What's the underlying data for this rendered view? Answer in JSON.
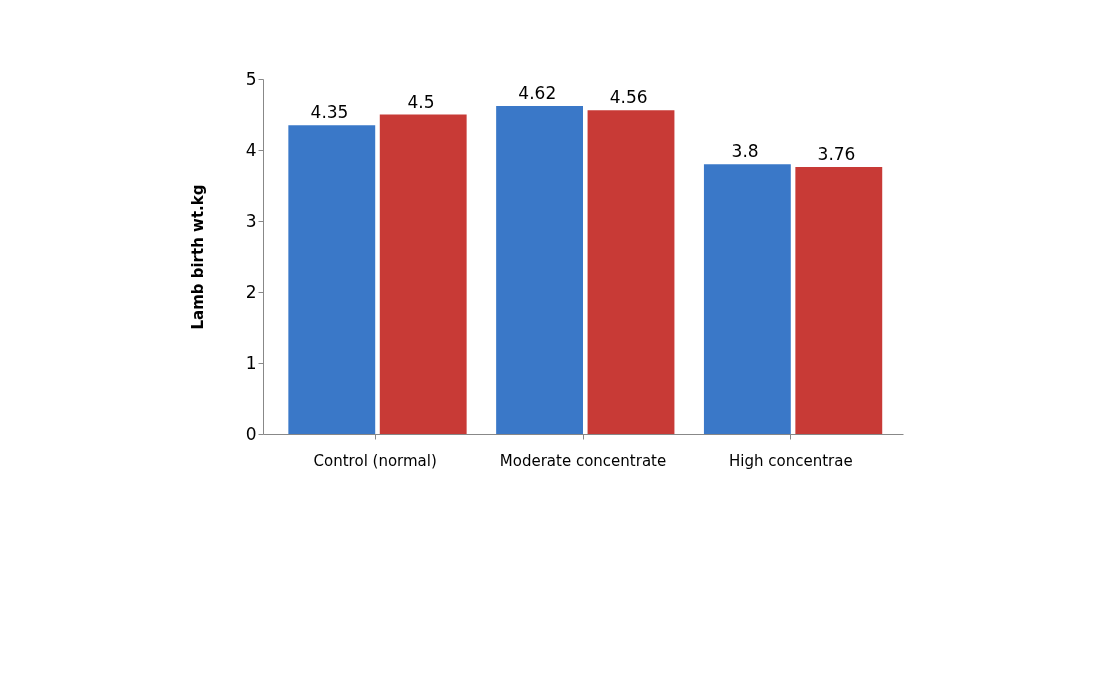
{
  "chart_data": {
    "type": "bar",
    "ylabel": "Lamb birth wt.kg",
    "categories": [
      "Control (normal)",
      "Moderate concentrate",
      "High concentrae"
    ],
    "series": [
      {
        "color": "#3a78c8",
        "values": [
          4.35,
          4.62,
          3.8
        ]
      },
      {
        "color": "#c83a36",
        "values": [
          4.5,
          4.56,
          3.76
        ]
      }
    ],
    "ylim": [
      0,
      5
    ],
    "yticks": [
      0,
      1,
      2,
      3,
      4,
      5
    ],
    "data_labels": true,
    "grid": false,
    "legend": false
  }
}
